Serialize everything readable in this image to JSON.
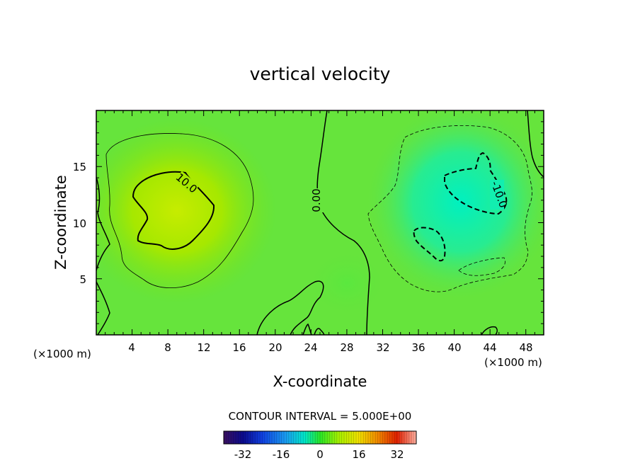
{
  "chart_data": {
    "type": "heatmap",
    "title": "vertical velocity",
    "xlabel": "X-coordinate",
    "ylabel": "Z-coordinate",
    "x_unit": "(×1000 m)",
    "z_unit": "(×1000 m)",
    "xlim": [
      0,
      50
    ],
    "ylim": [
      0,
      20
    ],
    "x_ticks": [
      "4",
      "8",
      "12",
      "16",
      "20",
      "24",
      "28",
      "32",
      "36",
      "40",
      "44",
      "48"
    ],
    "y_ticks": [
      "5",
      "10",
      "15"
    ],
    "contour_interval_text": "CONTOUR INTERVAL = 5.000E+00",
    "contour_labels": [
      "10.0",
      "0.00",
      "-10.0"
    ],
    "colorbar": {
      "range": [
        -40,
        40
      ],
      "tick_labels": [
        "-32",
        "-16",
        "0",
        "16",
        "32"
      ],
      "colors": [
        "#2a0f4f",
        "#0a0a8c",
        "#1040e0",
        "#1a9af0",
        "#00e6c8",
        "#28e628",
        "#a8f000",
        "#f0e000",
        "#f08800",
        "#e02000",
        "#ffb0a0"
      ]
    },
    "features": [
      {
        "name": "updraft",
        "center": [
          8,
          11
        ],
        "peak": 14
      },
      {
        "name": "downdraft",
        "center": [
          42,
          13
        ],
        "peak": -14
      }
    ]
  }
}
